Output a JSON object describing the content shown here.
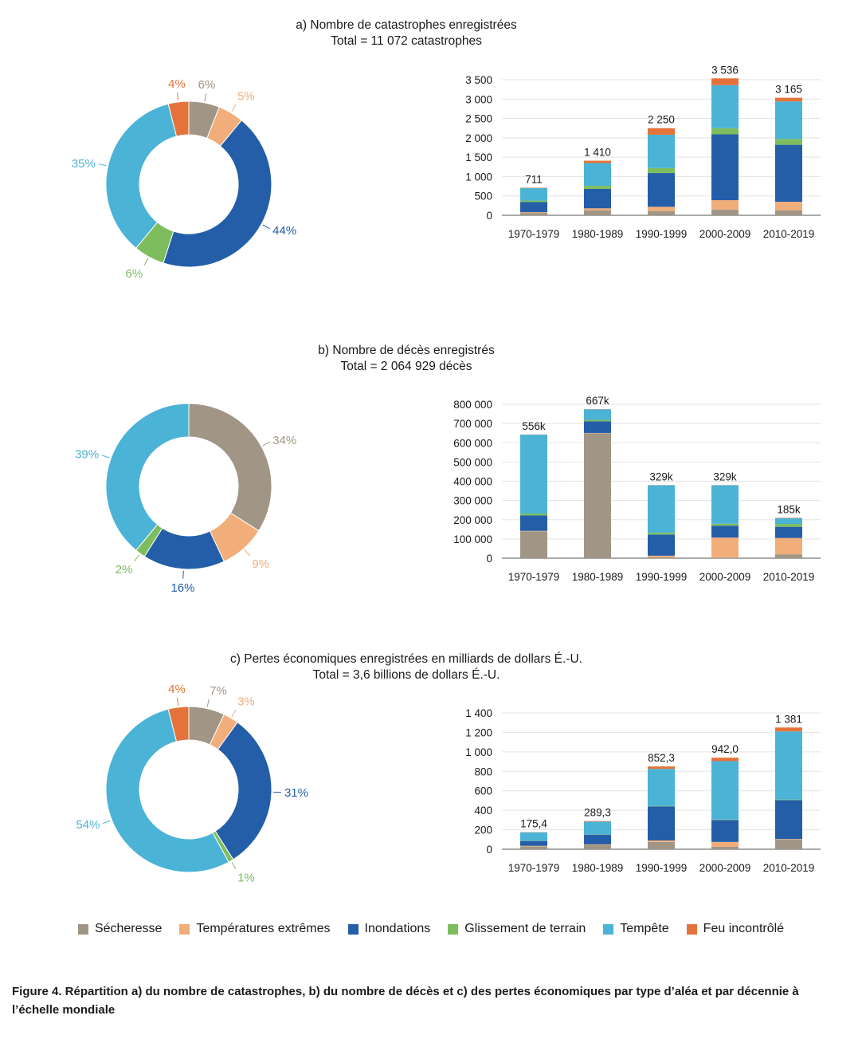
{
  "colors": {
    "secheresse": "#a19685",
    "temperatures": "#f1ad7a",
    "inondations": "#245ea8",
    "glissement": "#7dbd5d",
    "tempete": "#4bb3d6",
    "feu": "#e3733a"
  },
  "legend": [
    {
      "key": "secheresse",
      "label": "Sécheresse"
    },
    {
      "key": "temperatures",
      "label": "Températures extrêmes"
    },
    {
      "key": "inondations",
      "label": "Inondations"
    },
    {
      "key": "glissement",
      "label": "Glissement de terrain"
    },
    {
      "key": "tempete",
      "label": "Tempête"
    },
    {
      "key": "feu",
      "label": "Feu incontrôlé"
    }
  ],
  "caption": "Figure 4. Répartition a) du nombre de catastrophes, b) du nombre de décès et c) des pertes économiques par type d’aléa et par décennie à l’échelle mondiale",
  "chart_data": [
    {
      "panel": "a",
      "title": "a) Nombre de catastrophes enregistrées",
      "subtitle": "Total = 11 072 catastrophes",
      "donut": {
        "type": "pie",
        "slices": [
          {
            "key": "secheresse",
            "value": 6,
            "label": "6%"
          },
          {
            "key": "temperatures",
            "value": 5,
            "label": "5%"
          },
          {
            "key": "inondations",
            "value": 44,
            "label": "44%"
          },
          {
            "key": "glissement",
            "value": 6,
            "label": "6%"
          },
          {
            "key": "tempete",
            "value": 35,
            "label": "35%"
          },
          {
            "key": "feu",
            "value": 4,
            "label": "4%"
          }
        ]
      },
      "bars": {
        "type": "bar",
        "categories": [
          "1970-1979",
          "1980-1989",
          "1990-1999",
          "2000-2009",
          "2010-2019"
        ],
        "ylim": [
          0,
          3500
        ],
        "yticks": [
          0,
          500,
          1000,
          1500,
          2000,
          2500,
          3000,
          3500
        ],
        "ytick_labels": [
          "0",
          "500",
          "1 000",
          "1 500",
          "2 000",
          "2 500",
          "3 000",
          "3 500"
        ],
        "totals": [
          "711",
          "1 410",
          "2 250",
          "3 536",
          "3 165"
        ],
        "series": [
          {
            "key": "secheresse",
            "values": [
              60,
              130,
              110,
              150,
              130
            ]
          },
          {
            "key": "temperatures",
            "values": [
              20,
              50,
              110,
              240,
              220
            ]
          },
          {
            "key": "inondations",
            "values": [
              260,
              500,
              870,
              1700,
              1470
            ]
          },
          {
            "key": "glissement",
            "values": [
              40,
              80,
              130,
              160,
              150
            ]
          },
          {
            "key": "tempete",
            "values": [
              320,
              590,
              860,
              1110,
              970
            ]
          },
          {
            "key": "feu",
            "values": [
              11,
              60,
              170,
              176,
              95
            ]
          }
        ]
      }
    },
    {
      "panel": "b",
      "title": "b) Nombre de décès enregistrés",
      "subtitle": "Total =  2 064 929 décès",
      "donut": {
        "type": "pie",
        "slices": [
          {
            "key": "secheresse",
            "value": 34,
            "label": "34%"
          },
          {
            "key": "temperatures",
            "value": 9,
            "label": "9%"
          },
          {
            "key": "inondations",
            "value": 16,
            "label": "16%"
          },
          {
            "key": "glissement",
            "value": 2,
            "label": "2%"
          },
          {
            "key": "tempete",
            "value": 39,
            "label": "39%"
          }
        ]
      },
      "bars": {
        "type": "bar",
        "categories": [
          "1970-1979",
          "1980-1989",
          "1990-1999",
          "2000-2009",
          "2010-2019"
        ],
        "ylim": [
          0,
          800000
        ],
        "yticks": [
          0,
          100000,
          200000,
          300000,
          400000,
          500000,
          600000,
          700000,
          800000
        ],
        "ytick_labels": [
          "0",
          "100 000",
          "200 000",
          "300 000",
          "400 000",
          "500 000",
          "600 000",
          "700 000",
          "800 000"
        ],
        "totals": [
          "556k",
          "667k",
          "329k",
          "329k",
          "185k"
        ],
        "series": [
          {
            "key": "secheresse",
            "values": [
              140000,
              650000,
              5000,
              3000,
              20000
            ]
          },
          {
            "key": "temperatures",
            "values": [
              2000,
              1000,
              8000,
              104000,
              85000
            ]
          },
          {
            "key": "inondations",
            "values": [
              80000,
              60000,
              110000,
              62000,
              58000
            ]
          },
          {
            "key": "glissement",
            "values": [
              10000,
              8000,
              10000,
              10000,
              15000
            ]
          },
          {
            "key": "tempete",
            "values": [
              410000,
              55000,
              246000,
              200000,
              30000
            ]
          },
          {
            "key": "feu",
            "values": [
              1000,
              1000,
              1000,
              1000,
              2000
            ]
          }
        ]
      }
    },
    {
      "panel": "c",
      "title": "c) Pertes économiques enregistrées en milliards de dollars É.-U.",
      "subtitle": "Total =  3,6 billions de dollars É.-U.",
      "donut": {
        "type": "pie",
        "slices": [
          {
            "key": "secheresse",
            "value": 7,
            "label": "7%"
          },
          {
            "key": "temperatures",
            "value": 3,
            "label": "3%"
          },
          {
            "key": "inondations",
            "value": 31,
            "label": "31%"
          },
          {
            "key": "glissement",
            "value": 1,
            "label": "1%"
          },
          {
            "key": "tempete",
            "value": 54,
            "label": "54%"
          },
          {
            "key": "feu",
            "value": 4,
            "label": "4%"
          }
        ]
      },
      "bars": {
        "type": "bar",
        "categories": [
          "1970-1979",
          "1980-1989",
          "1990-1999",
          "2000-2009",
          "2010-2019"
        ],
        "ylim": [
          0,
          1400
        ],
        "yticks": [
          0,
          200,
          400,
          600,
          800,
          1000,
          1200,
          1400
        ],
        "ytick_labels": [
          "0",
          "200",
          "400",
          "600",
          "800",
          "1 000",
          "1 200",
          "1 400"
        ],
        "totals": [
          "175,4",
          "289,3",
          "852,3",
          "942,0",
          "1 381"
        ],
        "series": [
          {
            "key": "secheresse",
            "values": [
              30,
              45,
              75,
              25,
              100
            ]
          },
          {
            "key": "temperatures",
            "values": [
              5,
              5,
              15,
              50,
              5
            ]
          },
          {
            "key": "inondations",
            "values": [
              50,
              100,
              350,
              225,
              400
            ]
          },
          {
            "key": "glissement",
            "values": [
              2,
              3,
              5,
              5,
              5
            ]
          },
          {
            "key": "tempete",
            "values": [
              85,
              130,
              380,
              600,
              700
            ]
          },
          {
            "key": "feu",
            "values": [
              3,
              6,
              25,
              35,
              40
            ]
          }
        ]
      }
    }
  ]
}
